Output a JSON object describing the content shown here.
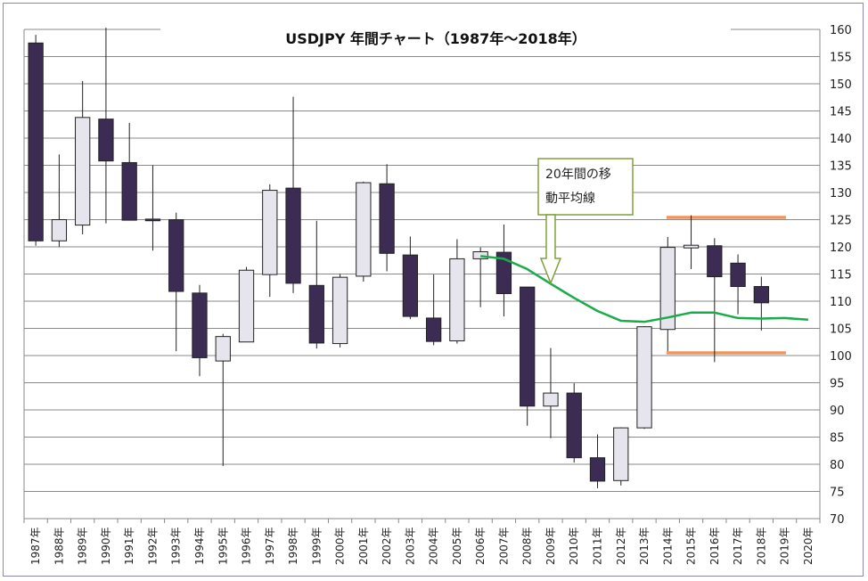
{
  "chart_data": {
    "type": "candlestick",
    "title": "USDJPY 年間チャート（1987年～2018年）",
    "ylim": [
      70,
      160
    ],
    "yticks": [
      70,
      75,
      80,
      85,
      90,
      95,
      100,
      105,
      110,
      115,
      120,
      125,
      130,
      135,
      140,
      145,
      150,
      155,
      160
    ],
    "categories": [
      "1987年",
      "1988年",
      "1989年",
      "1990年",
      "1991年",
      "1992年",
      "1993年",
      "1994年",
      "1995年",
      "1996年",
      "1997年",
      "1998年",
      "1999年",
      "2000年",
      "2001年",
      "2002年",
      "2003年",
      "2004年",
      "2005年",
      "2006年",
      "2007年",
      "2008年",
      "2009年",
      "2010年",
      "2011年",
      "2012年",
      "2013年",
      "2014年",
      "2015年",
      "2016年",
      "2017年",
      "2018年",
      "2019年",
      "2020年"
    ],
    "candles": [
      {
        "x": "1987年",
        "open": 157.5,
        "high": 159,
        "low": 120.2,
        "close": 121.1
      },
      {
        "x": "1988年",
        "open": 121.1,
        "high": 137,
        "low": 120,
        "close": 125
      },
      {
        "x": "1989年",
        "open": 124,
        "high": 150.5,
        "low": 122.3,
        "close": 143.8
      },
      {
        "x": "1990年",
        "open": 143.5,
        "high": 160.3,
        "low": 124.3,
        "close": 135.8
      },
      {
        "x": "1991年",
        "open": 135.5,
        "high": 142.8,
        "low": 125,
        "close": 124.9
      },
      {
        "x": "1992年",
        "open": 125.1,
        "high": 135,
        "low": 119.3,
        "close": 124.8
      },
      {
        "x": "1993年",
        "open": 125,
        "high": 126.3,
        "low": 100.8,
        "close": 111.8
      },
      {
        "x": "1994年",
        "open": 111.5,
        "high": 113,
        "low": 96.2,
        "close": 99.6
      },
      {
        "x": "1995年",
        "open": 99,
        "high": 104,
        "low": 79.7,
        "close": 103.5
      },
      {
        "x": "1996年",
        "open": 102.5,
        "high": 116.3,
        "low": 102.5,
        "close": 115.7
      },
      {
        "x": "1997年",
        "open": 114.9,
        "high": 131.5,
        "low": 110.8,
        "close": 130.4
      },
      {
        "x": "1998年",
        "open": 130.8,
        "high": 147.6,
        "low": 111.5,
        "close": 113.3
      },
      {
        "x": "1999年",
        "open": 112.9,
        "high": 124.8,
        "low": 101.3,
        "close": 102.3
      },
      {
        "x": "2000年",
        "open": 102.2,
        "high": 115,
        "low": 101.5,
        "close": 114.4
      },
      {
        "x": "2001年",
        "open": 114.6,
        "high": 132,
        "low": 113.6,
        "close": 131.8
      },
      {
        "x": "2002年",
        "open": 131.6,
        "high": 135.2,
        "low": 115.5,
        "close": 118.8
      },
      {
        "x": "2003年",
        "open": 118.5,
        "high": 121.9,
        "low": 106.7,
        "close": 107.2
      },
      {
        "x": "2004年",
        "open": 106.9,
        "high": 114.9,
        "low": 101.9,
        "close": 102.6
      },
      {
        "x": "2005年",
        "open": 102.7,
        "high": 121.4,
        "low": 102.2,
        "close": 117.8
      },
      {
        "x": "2006年",
        "open": 117.8,
        "high": 119.9,
        "low": 108.9,
        "close": 119.1
      },
      {
        "x": "2007年",
        "open": 119,
        "high": 124.1,
        "low": 107.2,
        "close": 111.4
      },
      {
        "x": "2008年",
        "open": 112.6,
        "high": 112.6,
        "low": 87.1,
        "close": 90.7
      },
      {
        "x": "2009年",
        "open": 90.7,
        "high": 101.4,
        "low": 84.8,
        "close": 93.1
      },
      {
        "x": "2010年",
        "open": 93.1,
        "high": 94.9,
        "low": 80.3,
        "close": 81.2
      },
      {
        "x": "2011年",
        "open": 81.2,
        "high": 85.5,
        "low": 75.6,
        "close": 76.9
      },
      {
        "x": "2012年",
        "open": 77,
        "high": 86.8,
        "low": 76.1,
        "close": 86.7
      },
      {
        "x": "2013年",
        "open": 86.7,
        "high": 105.4,
        "low": 86.5,
        "close": 105.3
      },
      {
        "x": "2014年",
        "open": 104.8,
        "high": 121.8,
        "low": 100.8,
        "close": 119.9
      },
      {
        "x": "2015年",
        "open": 119.8,
        "high": 125.8,
        "low": 115.9,
        "close": 120.3
      },
      {
        "x": "2016年",
        "open": 120.2,
        "high": 121.6,
        "low": 98.8,
        "close": 114.5
      },
      {
        "x": "2017年",
        "open": 117,
        "high": 118.6,
        "low": 107.6,
        "close": 112.7
      },
      {
        "x": "2018年",
        "open": 112.7,
        "high": 114.5,
        "low": 104.6,
        "close": 109.7
      }
    ],
    "series": [
      {
        "name": "20年間の移動平均線",
        "color": "#1aac4a",
        "type": "line",
        "x": [
          "2006年",
          "2007年",
          "2008年",
          "2009年",
          "2010年",
          "2011年",
          "2012年",
          "2013年",
          "2014年",
          "2015年",
          "2016年",
          "2017年",
          "2018年",
          "2019年",
          "2020年"
        ],
        "values": [
          118.3,
          117.8,
          115.9,
          113.2,
          110.6,
          108.2,
          106.4,
          106.2,
          107.0,
          107.9,
          107.9,
          106.9,
          106.8,
          106.9,
          106.6
        ]
      }
    ],
    "hlines": [
      {
        "value": 125.4,
        "from": "2014年",
        "to": "2019年",
        "color": "#f0955a"
      },
      {
        "value": 100.5,
        "from": "2014年",
        "to": "2019年",
        "color": "#f0955a"
      }
    ],
    "annotation": {
      "line1": "20年間の移",
      "line2": "動平均線",
      "arrow_from": "2009年",
      "arrow_to_y": 115.3
    },
    "colors": {
      "bear": "#3c2c54",
      "bull": "#e6e4ec",
      "candle_edge": "#222222",
      "ma": "#1aac4a",
      "support": "#f0955a"
    }
  }
}
